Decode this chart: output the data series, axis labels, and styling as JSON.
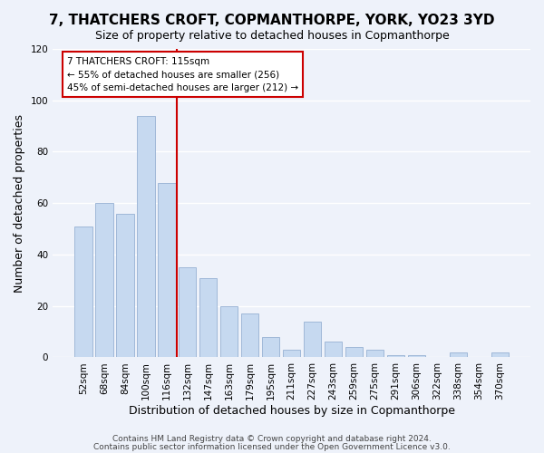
{
  "title": "7, THATCHERS CROFT, COPMANTHORPE, YORK, YO23 3YD",
  "subtitle": "Size of property relative to detached houses in Copmanthorpe",
  "xlabel": "Distribution of detached houses by size in Copmanthorpe",
  "ylabel": "Number of detached properties",
  "bar_labels": [
    "52sqm",
    "68sqm",
    "84sqm",
    "100sqm",
    "116sqm",
    "132sqm",
    "147sqm",
    "163sqm",
    "179sqm",
    "195sqm",
    "211sqm",
    "227sqm",
    "243sqm",
    "259sqm",
    "275sqm",
    "291sqm",
    "306sqm",
    "322sqm",
    "338sqm",
    "354sqm",
    "370sqm"
  ],
  "bar_values": [
    51,
    60,
    56,
    94,
    68,
    35,
    31,
    20,
    17,
    8,
    3,
    14,
    6,
    4,
    3,
    1,
    1,
    0,
    2,
    0,
    2
  ],
  "bar_color": "#c6d9f0",
  "bar_edge_color": "#a0b8d8",
  "highlight_index": 4,
  "highlight_line_color": "#cc0000",
  "ylim": [
    0,
    120
  ],
  "yticks": [
    0,
    20,
    40,
    60,
    80,
    100,
    120
  ],
  "annotation_title": "7 THATCHERS CROFT: 115sqm",
  "annotation_line1": "← 55% of detached houses are smaller (256)",
  "annotation_line2": "45% of semi-detached houses are larger (212) →",
  "annotation_box_color": "#ffffff",
  "annotation_box_edge": "#cc0000",
  "footer_line1": "Contains HM Land Registry data © Crown copyright and database right 2024.",
  "footer_line2": "Contains public sector information licensed under the Open Government Licence v3.0.",
  "bg_color": "#eef2fa",
  "plot_bg_color": "#eef2fa",
  "grid_color": "#ffffff",
  "title_fontsize": 11,
  "subtitle_fontsize": 9,
  "axis_label_fontsize": 9,
  "tick_fontsize": 7.5,
  "footer_fontsize": 6.5
}
